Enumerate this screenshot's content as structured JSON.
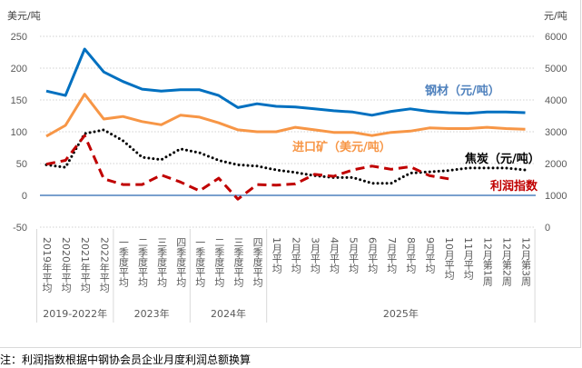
{
  "chart_data": {
    "type": "line",
    "left_axis": {
      "unit": "美元/吨",
      "range": [
        -50,
        250
      ],
      "ticks": [
        250,
        200,
        150,
        100,
        50,
        0,
        -50
      ]
    },
    "right_axis": {
      "unit": "元/吨",
      "range": [
        0,
        6000
      ],
      "ticks": [
        6000,
        5000,
        4000,
        3000,
        2000,
        1000,
        0
      ]
    },
    "grid": "horizontal dotted",
    "categories": [
      "2019年平均",
      "2020年平均",
      "2021年平均",
      "2022年平均",
      "一季度平均",
      "二季度平均",
      "三季度平均",
      "四季度平均",
      "一季度平均",
      "二季度平均",
      "三季度平均",
      "四季度平均",
      "1月平均",
      "2月平均",
      "3月平均",
      "4月平均",
      "5月平均",
      "6月平均",
      "7月平均",
      "8月平均",
      "9月平均",
      "10月平均",
      "11月平均",
      "12月第1周",
      "12月第2周",
      "12月第3周"
    ],
    "groups": [
      {
        "label": "2019-2022年",
        "span": 4
      },
      {
        "label": "2023年",
        "span": 4
      },
      {
        "label": "2024年",
        "span": 4
      },
      {
        "label": "2025年",
        "span": 14
      }
    ],
    "series": [
      {
        "name": "钢材（元/吨）",
        "axis": "right",
        "color": "#0070c0",
        "style": "solid",
        "values": [
          4280,
          4140,
          5600,
          4880,
          4580,
          4340,
          4280,
          4320,
          4320,
          4140,
          3760,
          3880,
          3800,
          3780,
          3720,
          3660,
          3620,
          3520,
          3640,
          3720,
          3640,
          3600,
          3580,
          3620,
          3620,
          3600
        ]
      },
      {
        "name": "进口矿（美元/吨）",
        "axis": "left",
        "color": "#f79646",
        "style": "solid",
        "values": [
          93,
          110,
          159,
          120,
          124,
          116,
          111,
          126,
          123,
          114,
          103,
          100,
          100,
          107,
          103,
          99,
          99,
          94,
          99,
          101,
          106,
          105,
          105,
          107,
          105,
          104
        ]
      },
      {
        "name": "焦炭（元/吨）",
        "axis": "right",
        "color": "#000000",
        "style": "dotted",
        "values": [
          1960,
          1880,
          2940,
          3060,
          2720,
          2200,
          2120,
          2460,
          2340,
          2100,
          1960,
          1920,
          1800,
          1720,
          1620,
          1560,
          1560,
          1380,
          1380,
          1700,
          1740,
          1780,
          1860,
          1860,
          1860,
          1800
        ]
      },
      {
        "name": "利润指数",
        "axis": "left",
        "color": "#c00000",
        "style": "dashed",
        "values": [
          49,
          55,
          94,
          26,
          17,
          17,
          32,
          21,
          7,
          27,
          -6,
          17,
          16,
          18,
          33,
          30,
          40,
          46,
          41,
          45,
          31,
          26,
          null,
          null,
          null,
          null
        ]
      }
    ]
  },
  "note": "注：利润指数根据中钢协会员企业月度利润总额换算"
}
